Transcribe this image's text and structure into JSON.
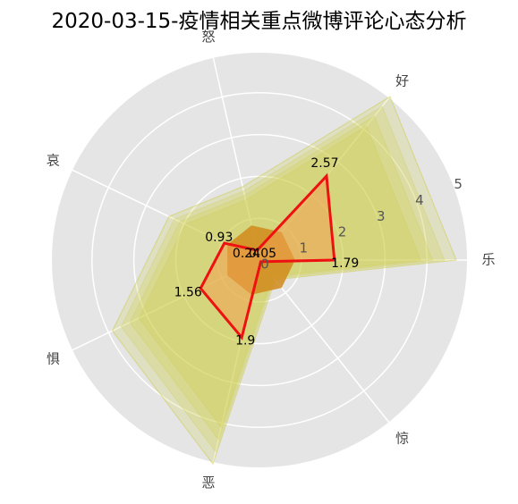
{
  "title": "2020-03-15-疫情相关重点微博评论心态分析",
  "chart_data": {
    "type": "radar",
    "title": "2020-03-15-疫情相关重点微博评论心态分析",
    "categories": [
      "乐",
      "好",
      "怒",
      "哀",
      "惧",
      "恶",
      "惊"
    ],
    "radial_ticks": [
      "0",
      "1",
      "2",
      "3",
      "4",
      "5"
    ],
    "rlim": [
      0,
      5
    ],
    "grid": true,
    "series": [
      {
        "role": "mean",
        "values": [
          1.79,
          2.57,
          0.24,
          0.93,
          1.56,
          1.9,
          0.05
        ],
        "labels": [
          "1.79",
          "2.57",
          "0.24",
          "0.93",
          "1.56",
          "1.9",
          "0.05"
        ]
      }
    ],
    "background_envelope": {
      "max": [
        4.7,
        5.0,
        1.8,
        2.4,
        3.9,
        5.0,
        0.6
      ],
      "inner": [
        0.85,
        0.85,
        0.85,
        0.85,
        0.85,
        0.85,
        0.85
      ]
    },
    "colors": {
      "mean_line": "#ee1111",
      "mean_fill": "#f0a050",
      "envelope": "#cccc44",
      "grid": "#ffffff",
      "background": "#e5e5e5",
      "core": "#d08a1a"
    }
  }
}
